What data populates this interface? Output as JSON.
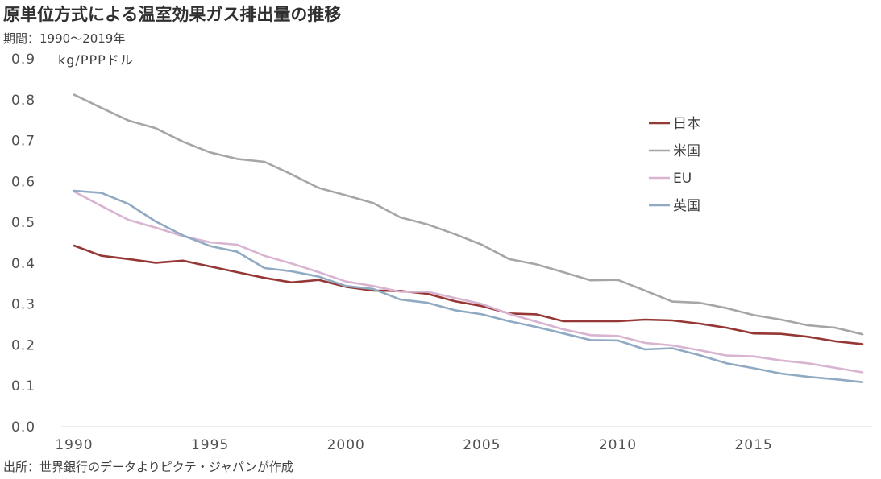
{
  "title": "原単位方式による温室効果ガス排出量の推移",
  "subtitle": "期間：1990～2019年",
  "source": "出所：世界銀行のデータよりピクテ・ジャパンが作成",
  "chart_data": {
    "type": "line",
    "title": "原単位方式による温室効果ガス排出量の推移",
    "ylabel": "kg/PPPドル",
    "xlabel": "",
    "xlim": [
      1990,
      2019
    ],
    "ylim": [
      0.0,
      0.9
    ],
    "grid": false,
    "legend_position": "top-right",
    "x_ticks": [
      "1990",
      "1995",
      "2000",
      "2005",
      "2010",
      "2015"
    ],
    "y_ticks": [
      "0.0",
      "0.1",
      "0.2",
      "0.3",
      "0.4",
      "0.5",
      "0.6",
      "0.7",
      "0.8",
      "0.9"
    ],
    "x": [
      1990,
      1991,
      1992,
      1993,
      1994,
      1995,
      1996,
      1997,
      1998,
      1999,
      2000,
      2001,
      2002,
      2003,
      2004,
      2005,
      2006,
      2007,
      2008,
      2009,
      2010,
      2011,
      2012,
      2013,
      2014,
      2015,
      2016,
      2017,
      2018,
      2019
    ],
    "series": [
      {
        "name": "日本",
        "color": "#953735",
        "values": [
          0.443,
          0.418,
          0.41,
          0.401,
          0.406,
          0.392,
          0.378,
          0.364,
          0.353,
          0.359,
          0.342,
          0.333,
          0.332,
          0.325,
          0.307,
          0.295,
          0.277,
          0.275,
          0.258,
          0.258,
          0.258,
          0.262,
          0.26,
          0.252,
          0.242,
          0.228,
          0.227,
          0.22,
          0.209,
          0.202
        ]
      },
      {
        "name": "米国",
        "color": "#a6a6a6",
        "values": [
          0.812,
          0.78,
          0.749,
          0.73,
          0.697,
          0.671,
          0.655,
          0.648,
          0.617,
          0.584,
          0.566,
          0.547,
          0.512,
          0.495,
          0.471,
          0.445,
          0.41,
          0.397,
          0.378,
          0.358,
          0.359,
          0.333,
          0.306,
          0.303,
          0.29,
          0.273,
          0.262,
          0.248,
          0.242,
          0.226
        ]
      },
      {
        "name": "EU",
        "color": "#d8b4d0",
        "values": [
          0.575,
          0.54,
          0.506,
          0.487,
          0.466,
          0.451,
          0.445,
          0.418,
          0.399,
          0.378,
          0.355,
          0.344,
          0.33,
          0.33,
          0.315,
          0.3,
          0.276,
          0.257,
          0.238,
          0.224,
          0.222,
          0.205,
          0.199,
          0.187,
          0.174,
          0.172,
          0.162,
          0.155,
          0.144,
          0.133
        ]
      },
      {
        "name": "英国",
        "color": "#8faac2",
        "values": [
          0.577,
          0.572,
          0.545,
          0.502,
          0.468,
          0.442,
          0.428,
          0.388,
          0.38,
          0.367,
          0.344,
          0.337,
          0.311,
          0.303,
          0.285,
          0.275,
          0.258,
          0.244,
          0.228,
          0.212,
          0.211,
          0.189,
          0.192,
          0.175,
          0.155,
          0.143,
          0.13,
          0.122,
          0.116,
          0.109
        ]
      }
    ]
  }
}
